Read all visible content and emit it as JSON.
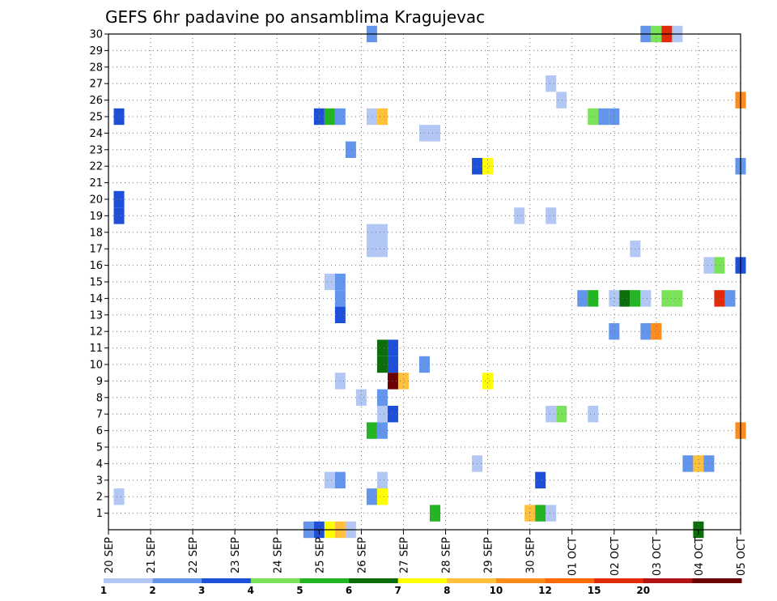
{
  "chart_data": {
    "type": "heatmap",
    "title": "GEFS 6hr padavine po ansamblima Kragujevac",
    "xlabel": "",
    "ylabel": "",
    "x_ticks": [
      "20 SEP",
      "21 SEP",
      "22 SEP",
      "23 SEP",
      "24 SEP",
      "25 SEP",
      "26 SEP",
      "27 SEP",
      "28 SEP",
      "29 SEP",
      "30 SEP",
      "01 OCT",
      "02 OCT",
      "03 OCT",
      "04 OCT",
      "05 OCT"
    ],
    "y_ticks": [
      "1",
      "2",
      "3",
      "4",
      "5",
      "6",
      "7",
      "8",
      "9",
      "10",
      "11",
      "12",
      "13",
      "14",
      "15",
      "16",
      "17",
      "18",
      "19",
      "20",
      "21",
      "22",
      "23",
      "24",
      "25",
      "26",
      "27",
      "28",
      "29",
      "30"
    ],
    "x_range_days": [
      0,
      15
    ],
    "y_range": [
      0,
      30
    ],
    "grid": true,
    "colorbar": {
      "labels": [
        "1",
        "2",
        "3",
        "4",
        "5",
        "6",
        "7",
        "8",
        "10",
        "12",
        "15",
        "20"
      ],
      "colors": [
        "#b3c7f5",
        "#6495ed",
        "#1e4fd8",
        "#7be35a",
        "#23b523",
        "#0b6e0b",
        "#ffff00",
        "#ffc03c",
        "#ff8c1a",
        "#ff6a00",
        "#e02a0a",
        "#b01414",
        "#6b0000"
      ]
    },
    "cells": [
      {
        "day": 0.25,
        "member": 25,
        "cls": 3
      },
      {
        "day": 0.25,
        "member": 20,
        "cls": 3
      },
      {
        "day": 0.25,
        "member": 19,
        "cls": 3
      },
      {
        "day": 0.25,
        "member": 2,
        "cls": 1
      },
      {
        "day": 5,
        "member": 25,
        "cls": 3
      },
      {
        "day": 5.25,
        "member": 25,
        "cls": 5
      },
      {
        "day": 5.5,
        "member": 25,
        "cls": 2
      },
      {
        "day": 5.25,
        "member": 15,
        "cls": 1
      },
      {
        "day": 5.5,
        "member": 15,
        "cls": 2
      },
      {
        "day": 5.5,
        "member": 14,
        "cls": 2
      },
      {
        "day": 5.5,
        "member": 13,
        "cls": 3
      },
      {
        "day": 5.5,
        "member": 9,
        "cls": 1
      },
      {
        "day": 5.25,
        "member": 3,
        "cls": 1
      },
      {
        "day": 5.5,
        "member": 3,
        "cls": 2
      },
      {
        "day": 5.75,
        "member": 23,
        "cls": 2
      },
      {
        "day": 6,
        "member": 8,
        "cls": 1
      },
      {
        "day": 6.25,
        "member": 30,
        "cls": 2
      },
      {
        "day": 6.25,
        "member": 25,
        "cls": 1
      },
      {
        "day": 6.5,
        "member": 25,
        "cls": 8
      },
      {
        "day": 6.25,
        "member": 18,
        "cls": 1
      },
      {
        "day": 6.5,
        "member": 18,
        "cls": 1
      },
      {
        "day": 6.25,
        "member": 17,
        "cls": 1
      },
      {
        "day": 6.5,
        "member": 17,
        "cls": 1
      },
      {
        "day": 6.5,
        "member": 10,
        "cls": 6
      },
      {
        "day": 6.5,
        "member": 11,
        "cls": 6
      },
      {
        "day": 6.75,
        "member": 10,
        "cls": 3
      },
      {
        "day": 6.75,
        "member": 11,
        "cls": 3
      },
      {
        "day": 6.75,
        "member": 9,
        "cls": 13
      },
      {
        "day": 7,
        "member": 9,
        "cls": 8
      },
      {
        "day": 6.5,
        "member": 8,
        "cls": 2
      },
      {
        "day": 6.5,
        "member": 7,
        "cls": 1
      },
      {
        "day": 6.75,
        "member": 7,
        "cls": 3
      },
      {
        "day": 6.25,
        "member": 6,
        "cls": 5
      },
      {
        "day": 6.5,
        "member": 6,
        "cls": 2
      },
      {
        "day": 6.5,
        "member": 3,
        "cls": 1
      },
      {
        "day": 6.25,
        "member": 2,
        "cls": 2
      },
      {
        "day": 6.5,
        "member": 2,
        "cls": 7
      },
      {
        "day": 7.5,
        "member": 24,
        "cls": 1
      },
      {
        "day": 7.75,
        "member": 24,
        "cls": 1
      },
      {
        "day": 7.5,
        "member": 10,
        "cls": 2
      },
      {
        "day": 7.75,
        "member": 1,
        "cls": 5
      },
      {
        "day": 8.75,
        "member": 22,
        "cls": 3
      },
      {
        "day": 9,
        "member": 22,
        "cls": 7
      },
      {
        "day": 9,
        "member": 9,
        "cls": 7
      },
      {
        "day": 8.75,
        "member": 4,
        "cls": 1
      },
      {
        "day": 9.75,
        "member": 19,
        "cls": 1
      },
      {
        "day": 10,
        "member": 1,
        "cls": 8
      },
      {
        "day": 10.25,
        "member": 1,
        "cls": 5
      },
      {
        "day": 10.5,
        "member": 1,
        "cls": 1
      },
      {
        "day": 10.25,
        "member": 3,
        "cls": 3
      },
      {
        "day": 10.5,
        "member": 27,
        "cls": 1
      },
      {
        "day": 10.75,
        "member": 26,
        "cls": 1
      },
      {
        "day": 10.5,
        "member": 19,
        "cls": 1
      },
      {
        "day": 10.5,
        "member": 7,
        "cls": 1
      },
      {
        "day": 10.75,
        "member": 7,
        "cls": 4
      },
      {
        "day": 11.25,
        "member": 14,
        "cls": 2
      },
      {
        "day": 11.5,
        "member": 14,
        "cls": 5
      },
      {
        "day": 11.5,
        "member": 25,
        "cls": 4
      },
      {
        "day": 11.75,
        "member": 25,
        "cls": 2
      },
      {
        "day": 12,
        "member": 25,
        "cls": 2
      },
      {
        "day": 11.5,
        "member": 7,
        "cls": 1
      },
      {
        "day": 12,
        "member": 14,
        "cls": 1
      },
      {
        "day": 12,
        "member": 12,
        "cls": 2
      },
      {
        "day": 12.25,
        "member": 14,
        "cls": 6
      },
      {
        "day": 12.5,
        "member": 14,
        "cls": 5
      },
      {
        "day": 12.75,
        "member": 14,
        "cls": 1
      },
      {
        "day": 12.5,
        "member": 17,
        "cls": 1
      },
      {
        "day": 12.75,
        "member": 12,
        "cls": 2
      },
      {
        "day": 13,
        "member": 12,
        "cls": 9
      },
      {
        "day": 12.75,
        "member": 30,
        "cls": 2
      },
      {
        "day": 13,
        "member": 30,
        "cls": 4
      },
      {
        "day": 13.25,
        "member": 30,
        "cls": 11
      },
      {
        "day": 13.5,
        "member": 30,
        "cls": 1
      },
      {
        "day": 13.25,
        "member": 14,
        "cls": 4
      },
      {
        "day": 13.5,
        "member": 14,
        "cls": 4
      },
      {
        "day": 13.75,
        "member": 4,
        "cls": 2
      },
      {
        "day": 14,
        "member": 4,
        "cls": 8
      },
      {
        "day": 14.25,
        "member": 4,
        "cls": 2
      },
      {
        "day": 14.25,
        "member": 16,
        "cls": 1
      },
      {
        "day": 14.5,
        "member": 16,
        "cls": 4
      },
      {
        "day": 14.5,
        "member": 14,
        "cls": 11
      },
      {
        "day": 14.75,
        "member": 14,
        "cls": 2
      },
      {
        "day": 15,
        "member": 26,
        "cls": 9
      },
      {
        "day": 15,
        "member": 22,
        "cls": 2
      },
      {
        "day": 15,
        "member": 16,
        "cls": 3
      },
      {
        "day": 15,
        "member": 6,
        "cls": 9
      },
      {
        "day": 4.75,
        "member": 0,
        "cls": 2
      },
      {
        "day": 5,
        "member": 0,
        "cls": 3
      },
      {
        "day": 5.25,
        "member": 0,
        "cls": 7
      },
      {
        "day": 5.5,
        "member": 0,
        "cls": 8
      },
      {
        "day": 5.75,
        "member": 0,
        "cls": 1
      },
      {
        "day": 14,
        "member": 0,
        "cls": 6
      }
    ]
  }
}
